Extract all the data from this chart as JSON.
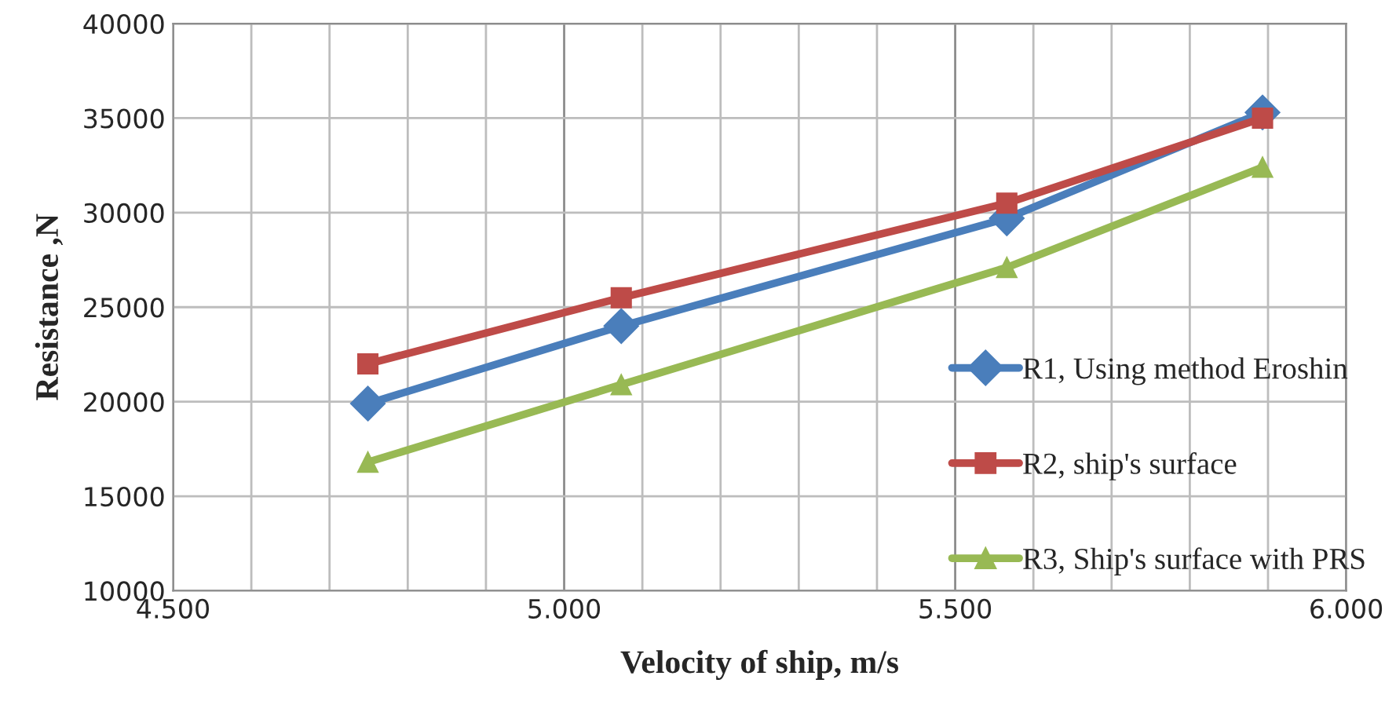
{
  "chart_data": {
    "type": "line",
    "xlabel": "Velocity of ship, m/s",
    "ylabel": "Resistance ,N",
    "x": [
      4.749,
      5.073,
      5.566,
      5.893
    ],
    "series": [
      {
        "name": "R1, Using method Eroshin",
        "color": "#4a7ebb",
        "values": [
          19900,
          24000,
          29700,
          35300
        ],
        "marker": "diamond"
      },
      {
        "name": "R2, ship's surface",
        "color": "#be4b48",
        "values": [
          22000,
          25500,
          30500,
          35000
        ],
        "marker": "square"
      },
      {
        "name": "R3, Ship's surface with PRS",
        "color": "#98b954",
        "values": [
          16800,
          20900,
          27100,
          32400
        ],
        "marker": "triangle"
      }
    ],
    "xlim": [
      4.5,
      6.0
    ],
    "xticks": [
      {
        "value": 4.5,
        "label": "4.500"
      },
      {
        "value": 4.6,
        "label": null
      },
      {
        "value": 4.7,
        "label": null
      },
      {
        "value": 4.8,
        "label": null
      },
      {
        "value": 4.9,
        "label": null
      },
      {
        "value": 5.0,
        "label": "5.000"
      },
      {
        "value": 5.1,
        "label": null
      },
      {
        "value": 5.2,
        "label": null
      },
      {
        "value": 5.3,
        "label": null
      },
      {
        "value": 5.4,
        "label": null
      },
      {
        "value": 5.5,
        "label": "5.500"
      },
      {
        "value": 5.6,
        "label": null
      },
      {
        "value": 5.7,
        "label": null
      },
      {
        "value": 5.8,
        "label": null
      },
      {
        "value": 5.9,
        "label": null
      },
      {
        "value": 6.0,
        "label": "6.000"
      }
    ],
    "ylim": [
      10000,
      40000
    ],
    "yticks": [
      10000,
      15000,
      20000,
      25000,
      30000,
      35000,
      40000
    ],
    "grid": true,
    "legend": "right",
    "line_style": "solid"
  }
}
